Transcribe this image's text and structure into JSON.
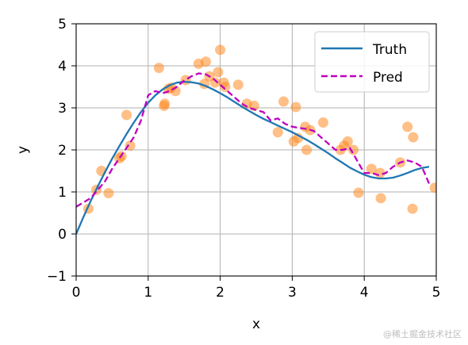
{
  "chart_data": {
    "type": "line",
    "xlabel": "x",
    "ylabel": "y",
    "xlim": [
      0,
      5
    ],
    "ylim": [
      -1,
      5
    ],
    "xticks": [
      0,
      1,
      2,
      3,
      4,
      5
    ],
    "yticks": [
      -1,
      0,
      1,
      2,
      3,
      4,
      5
    ],
    "xtick_labels": [
      "0",
      "1",
      "2",
      "3",
      "4",
      "5"
    ],
    "ytick_labels": [
      "−1",
      "0",
      "1",
      "2",
      "3",
      "4",
      "5"
    ],
    "grid": true,
    "legend_position": "top-right",
    "series": [
      {
        "name": "Truth",
        "style": "solid",
        "color": "#1f77b4",
        "x": [
          0.0,
          0.1,
          0.2,
          0.3,
          0.4,
          0.5,
          0.6,
          0.7,
          0.8,
          0.9,
          1.0,
          1.1,
          1.2,
          1.3,
          1.4,
          1.5,
          1.6,
          1.7,
          1.8,
          1.9,
          2.0,
          2.1,
          2.2,
          2.3,
          2.4,
          2.5,
          2.6,
          2.7,
          2.8,
          2.9,
          3.0,
          3.1,
          3.2,
          3.3,
          3.4,
          3.5,
          3.6,
          3.7,
          3.8,
          3.9,
          4.0,
          4.1,
          4.2,
          4.3,
          4.4,
          4.5,
          4.6,
          4.7,
          4.8,
          4.9
        ],
        "y": [
          0.0,
          0.4,
          0.78,
          1.13,
          1.47,
          1.79,
          2.09,
          2.38,
          2.65,
          2.9,
          3.12,
          3.3,
          3.44,
          3.54,
          3.6,
          3.62,
          3.61,
          3.58,
          3.52,
          3.44,
          3.35,
          3.25,
          3.14,
          3.03,
          2.93,
          2.83,
          2.74,
          2.66,
          2.58,
          2.5,
          2.42,
          2.33,
          2.24,
          2.14,
          2.03,
          1.92,
          1.8,
          1.69,
          1.58,
          1.49,
          1.41,
          1.35,
          1.32,
          1.32,
          1.34,
          1.39,
          1.45,
          1.52,
          1.57,
          1.6
        ]
      },
      {
        "name": "Pred",
        "style": "dashed",
        "color": "#bf00bf",
        "x": [
          0.0,
          0.1,
          0.2,
          0.3,
          0.4,
          0.5,
          0.6,
          0.7,
          0.8,
          0.9,
          1.0,
          1.1,
          1.2,
          1.3,
          1.4,
          1.5,
          1.6,
          1.7,
          1.8,
          1.9,
          2.0,
          2.1,
          2.2,
          2.3,
          2.4,
          2.5,
          2.6,
          2.7,
          2.8,
          2.9,
          3.0,
          3.1,
          3.2,
          3.3,
          3.4,
          3.5,
          3.6,
          3.7,
          3.8,
          3.9,
          4.0,
          4.1,
          4.2,
          4.3,
          4.4,
          4.5,
          4.6,
          4.7,
          4.8,
          4.9
        ],
        "y": [
          0.65,
          0.75,
          0.85,
          1.05,
          1.25,
          1.55,
          1.8,
          2.05,
          2.3,
          2.7,
          3.3,
          3.4,
          3.35,
          3.4,
          3.5,
          3.65,
          3.75,
          3.82,
          3.8,
          3.7,
          3.55,
          3.4,
          3.25,
          3.1,
          3.0,
          2.95,
          2.9,
          2.7,
          2.75,
          2.62,
          2.55,
          2.52,
          2.5,
          2.45,
          2.3,
          2.15,
          2.0,
          2.0,
          2.05,
          1.75,
          1.45,
          1.45,
          1.4,
          1.45,
          1.6,
          1.7,
          1.75,
          1.7,
          1.6,
          1.2
        ]
      }
    ],
    "scatter": {
      "color": "#ff7f0e",
      "x": [
        0.17,
        0.28,
        0.35,
        0.45,
        0.6,
        0.63,
        0.7,
        0.75,
        1.15,
        1.22,
        1.23,
        1.28,
        1.32,
        1.38,
        1.52,
        1.7,
        1.78,
        1.8,
        1.85,
        1.93,
        1.97,
        2.0,
        2.05,
        2.07,
        2.25,
        2.37,
        2.47,
        2.8,
        2.88,
        3.02,
        3.05,
        3.08,
        3.18,
        3.2,
        3.25,
        3.43,
        3.67,
        3.72,
        3.77,
        3.85,
        3.92,
        4.1,
        4.22,
        4.23,
        4.5,
        4.6,
        4.67,
        4.68,
        4.98
      ],
      "y": [
        0.6,
        1.05,
        1.5,
        0.97,
        1.8,
        1.85,
        2.83,
        2.1,
        3.95,
        3.05,
        3.1,
        3.45,
        3.48,
        3.4,
        3.66,
        4.05,
        3.57,
        4.1,
        3.75,
        3.6,
        3.85,
        4.38,
        3.6,
        3.5,
        3.55,
        3.1,
        3.05,
        2.42,
        3.15,
        2.2,
        3.02,
        2.28,
        2.55,
        2.0,
        2.47,
        2.65,
        2.0,
        2.1,
        2.2,
        2.0,
        0.98,
        1.55,
        1.45,
        0.85,
        1.7,
        2.55,
        0.6,
        2.3,
        1.1
      ]
    }
  },
  "watermark": "@稀土掘金技术社区"
}
